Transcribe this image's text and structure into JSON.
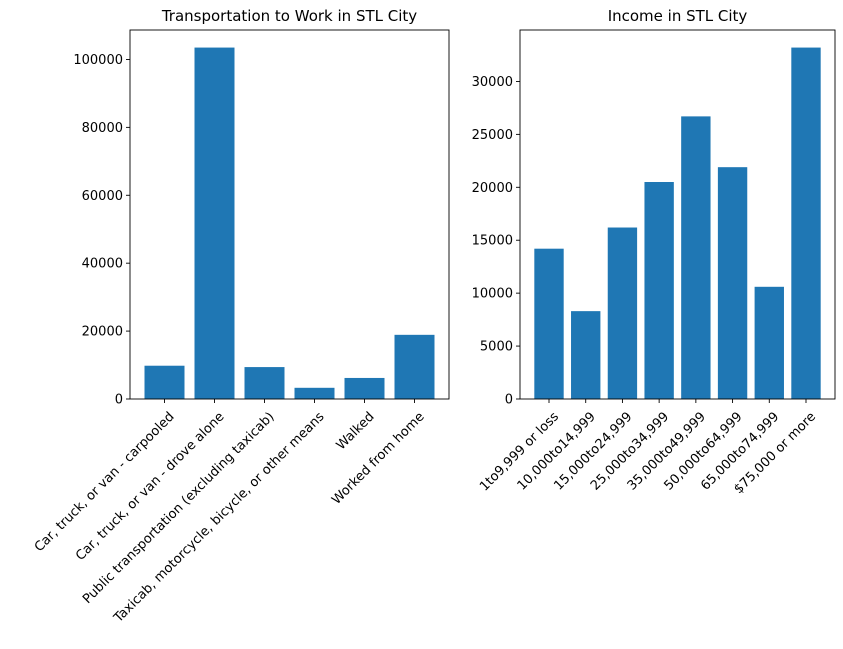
{
  "colors": {
    "bar": "#1f77b4",
    "axis": "#000000"
  },
  "chart_data": [
    {
      "type": "bar",
      "title": "Transportation to Work in STL City",
      "xlabel": "",
      "ylabel": "",
      "categories": [
        "Car, truck, or van - carpooled",
        "Car, truck, or van - drove alone",
        "Public transportation (excluding taxicab)",
        "Taxicab, motorcycle, bicycle, or other means",
        "Walked",
        "Worked from home"
      ],
      "values": [
        9800,
        103500,
        9400,
        3300,
        6200,
        18900
      ],
      "ylim": [
        0,
        108675
      ],
      "yticks": [
        0,
        20000,
        40000,
        60000,
        80000,
        100000
      ]
    },
    {
      "type": "bar",
      "title": "Income in STL City",
      "xlabel": "",
      "ylabel": "",
      "categories": [
        "1to9,999 or loss",
        "10,000to14,999",
        "15,000to24,999",
        "25,000to34,999",
        "35,000to49,999",
        "50,000to64,999",
        "65,000to74,999",
        "$75,000 or more"
      ],
      "values": [
        14200,
        8300,
        16200,
        20500,
        26700,
        21900,
        10600,
        33200
      ],
      "ylim": [
        0,
        34860
      ],
      "yticks": [
        0,
        5000,
        10000,
        15000,
        20000,
        25000,
        30000
      ]
    }
  ]
}
